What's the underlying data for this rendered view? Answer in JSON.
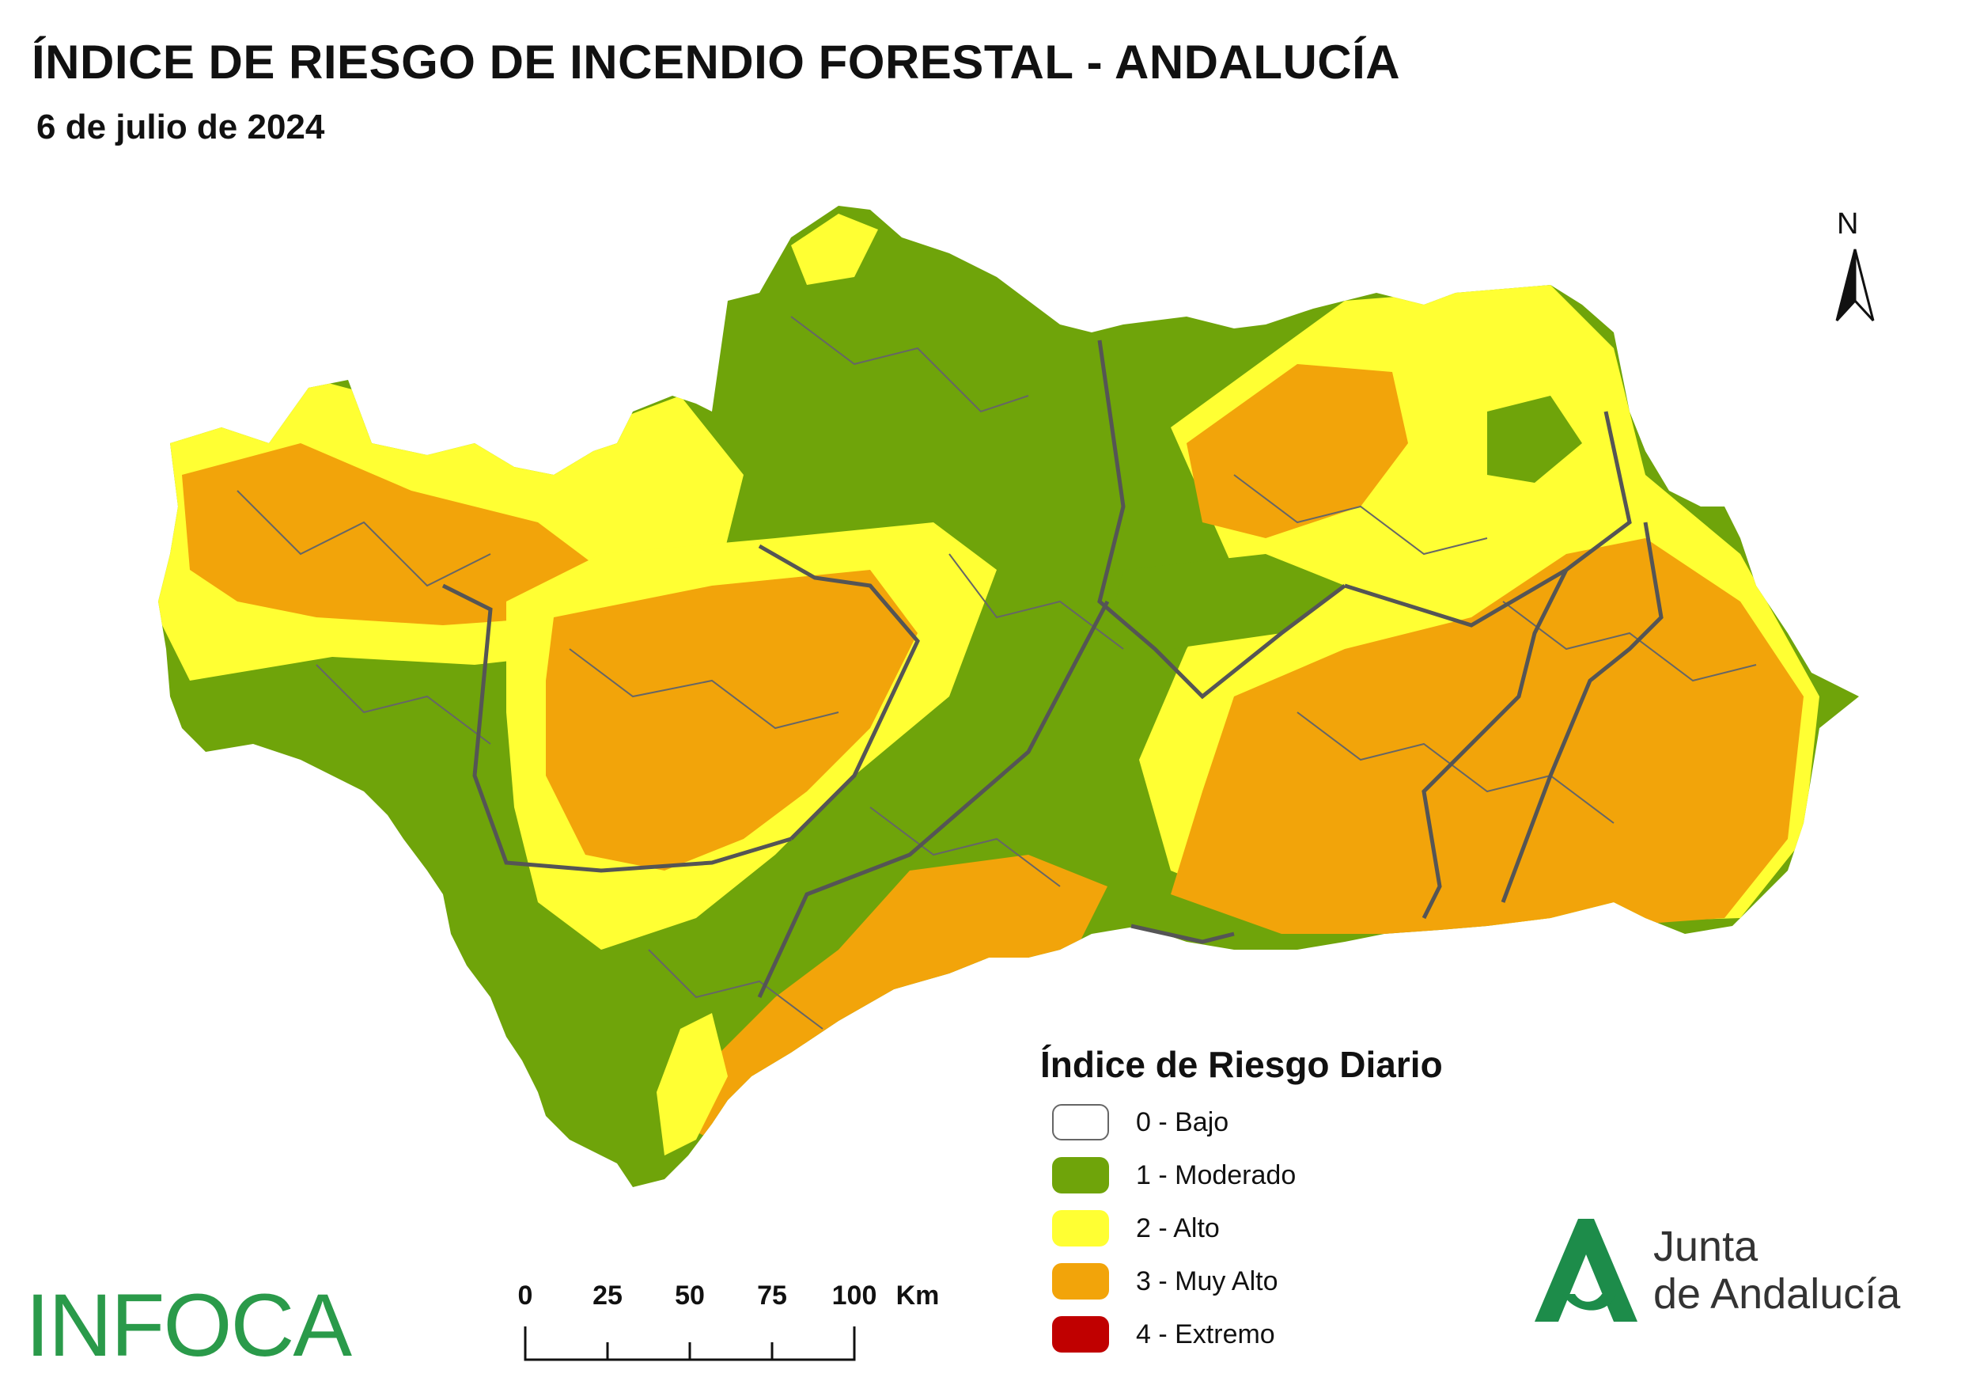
{
  "title": "ÍNDICE DE RIESGO DE INCENDIO FORESTAL - ANDALUCÍA",
  "subtitle": "6 de julio de 2024",
  "north_label": "N",
  "legend": {
    "title": "Índice de Riesgo Diario",
    "items": [
      {
        "label": "0 - Bajo",
        "color": "#ffffff"
      },
      {
        "label": "1 - Moderado",
        "color": "#6fa40a"
      },
      {
        "label": "2 - Alto",
        "color": "#ffff33"
      },
      {
        "label": "3 - Muy Alto",
        "color": "#f2a40a"
      },
      {
        "label": "4 - Extremo",
        "color": "#c00000"
      }
    ]
  },
  "scale_bar": {
    "ticks": [
      "0",
      "25",
      "50",
      "75",
      "100"
    ],
    "unit": "Km"
  },
  "logos": {
    "infoca": "INFOCA",
    "junta_line1": "Junta",
    "junta_line2": "de Andalucía"
  },
  "colors": {
    "moderado": "#6fa40a",
    "alto": "#ffff33",
    "muy_alto": "#f2a40a",
    "border_provincial": "#555555",
    "border_municipal": "#666666"
  }
}
